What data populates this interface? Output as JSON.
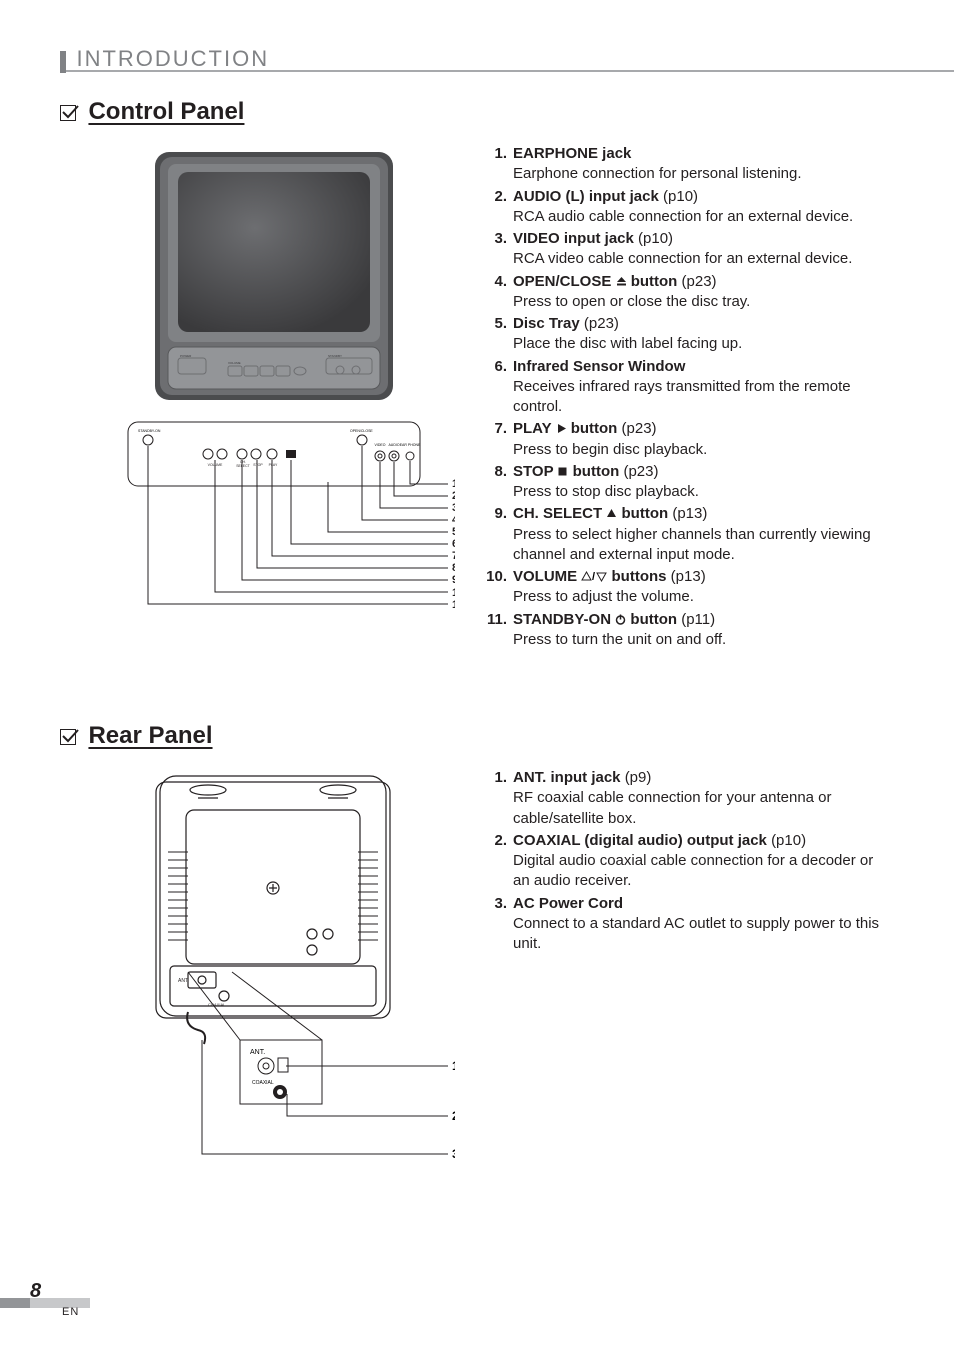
{
  "page": {
    "chapter": "INTRODUCTION",
    "number": "8",
    "lang": "EN"
  },
  "control_panel": {
    "title": "Control Panel",
    "items": [
      {
        "num": "1.",
        "title": "EARPHONE jack",
        "symbol": null,
        "ref": "",
        "desc": "Earphone connection for personal listening."
      },
      {
        "num": "2.",
        "title": "AUDIO (L) input jack",
        "symbol": null,
        "ref": "(p10)",
        "desc": "RCA audio cable connection for an external device."
      },
      {
        "num": "3.",
        "title": "VIDEO input jack",
        "symbol": null,
        "ref": "(p10)",
        "desc": "RCA video cable connection for an external device."
      },
      {
        "num": "4.",
        "title": "OPEN/CLOSE ",
        "symbol": "eject",
        "title2": " button",
        "ref": "(p23)",
        "desc": "Press to open or close the disc tray."
      },
      {
        "num": "5.",
        "title": "Disc Tray",
        "symbol": null,
        "ref": "(p23)",
        "desc": "Place the disc with label facing up."
      },
      {
        "num": "6.",
        "title": "Infrared Sensor Window",
        "symbol": null,
        "ref": "",
        "desc": "Receives infrared rays transmitted from the remote control."
      },
      {
        "num": "7.",
        "title": "PLAY ",
        "symbol": "play",
        "title2": " button",
        "ref": "(p23)",
        "desc": "Press to begin disc playback."
      },
      {
        "num": "8.",
        "title": "STOP ",
        "symbol": "stop",
        "title2": " button",
        "ref": "(p23)",
        "desc": "Press to stop disc playback."
      },
      {
        "num": "9.",
        "title": "CH. SELECT ",
        "symbol": "up",
        "title2": " button",
        "ref": "(p13)",
        "desc": "Press to select higher channels than currently viewing channel and external input mode."
      },
      {
        "num": "10.",
        "title": "VOLUME ",
        "symbol": "updown",
        "title2": " buttons",
        "ref": "(p13)",
        "desc": "Press to adjust the volume."
      },
      {
        "num": "11.",
        "title": "STANDBY-ON ",
        "symbol": "power",
        "title2": " button",
        "ref": "(p11)",
        "desc": "Press to turn the unit on and off."
      }
    ],
    "diagram": {
      "front_labels": {
        "power": "POWER",
        "volume": "VOLUME",
        "standby": "STANDBY",
        "ch": "CH",
        "menu": "MENU",
        "left": "VIDEO",
        "right": "AUDIO"
      },
      "top_labels": {
        "standby": "STANDBY-ON",
        "open": "OPEN/CLOSE",
        "video": "VIDEO",
        "audio": "AUDIO",
        "earphone": "EAR PHONE",
        "vol": "VOLUME",
        "sel": "SELECT",
        "ch": "CH.",
        "stop": "STOP",
        "play": "PLAY"
      }
    }
  },
  "rear_panel": {
    "title": "Rear Panel",
    "items": [
      {
        "num": "1.",
        "title": "ANT. input jack",
        "ref": "(p9)",
        "desc": "RF coaxial cable connection for your antenna or cable/satellite box."
      },
      {
        "num": "2.",
        "title": "COAXIAL (digital audio) output jack",
        "ref": "(p10)",
        "desc": "Digital audio coaxial cable connection for a decoder or an audio receiver."
      },
      {
        "num": "3.",
        "title": "AC Power Cord",
        "ref": "",
        "desc": "Connect to a standard AC outlet to supply power to this unit."
      }
    ],
    "diagram": {
      "ant": "ANT.",
      "coax": "COAXIAL",
      "ant2": "ANT"
    }
  },
  "colors": {
    "tv_dark": "#4b4c4e",
    "tv_mid": "#6d6e71",
    "tv_light": "#939598",
    "screen_a": "#58595b",
    "screen_b": "#414042",
    "line": "#231f20",
    "grey": "#a7a9ac"
  }
}
